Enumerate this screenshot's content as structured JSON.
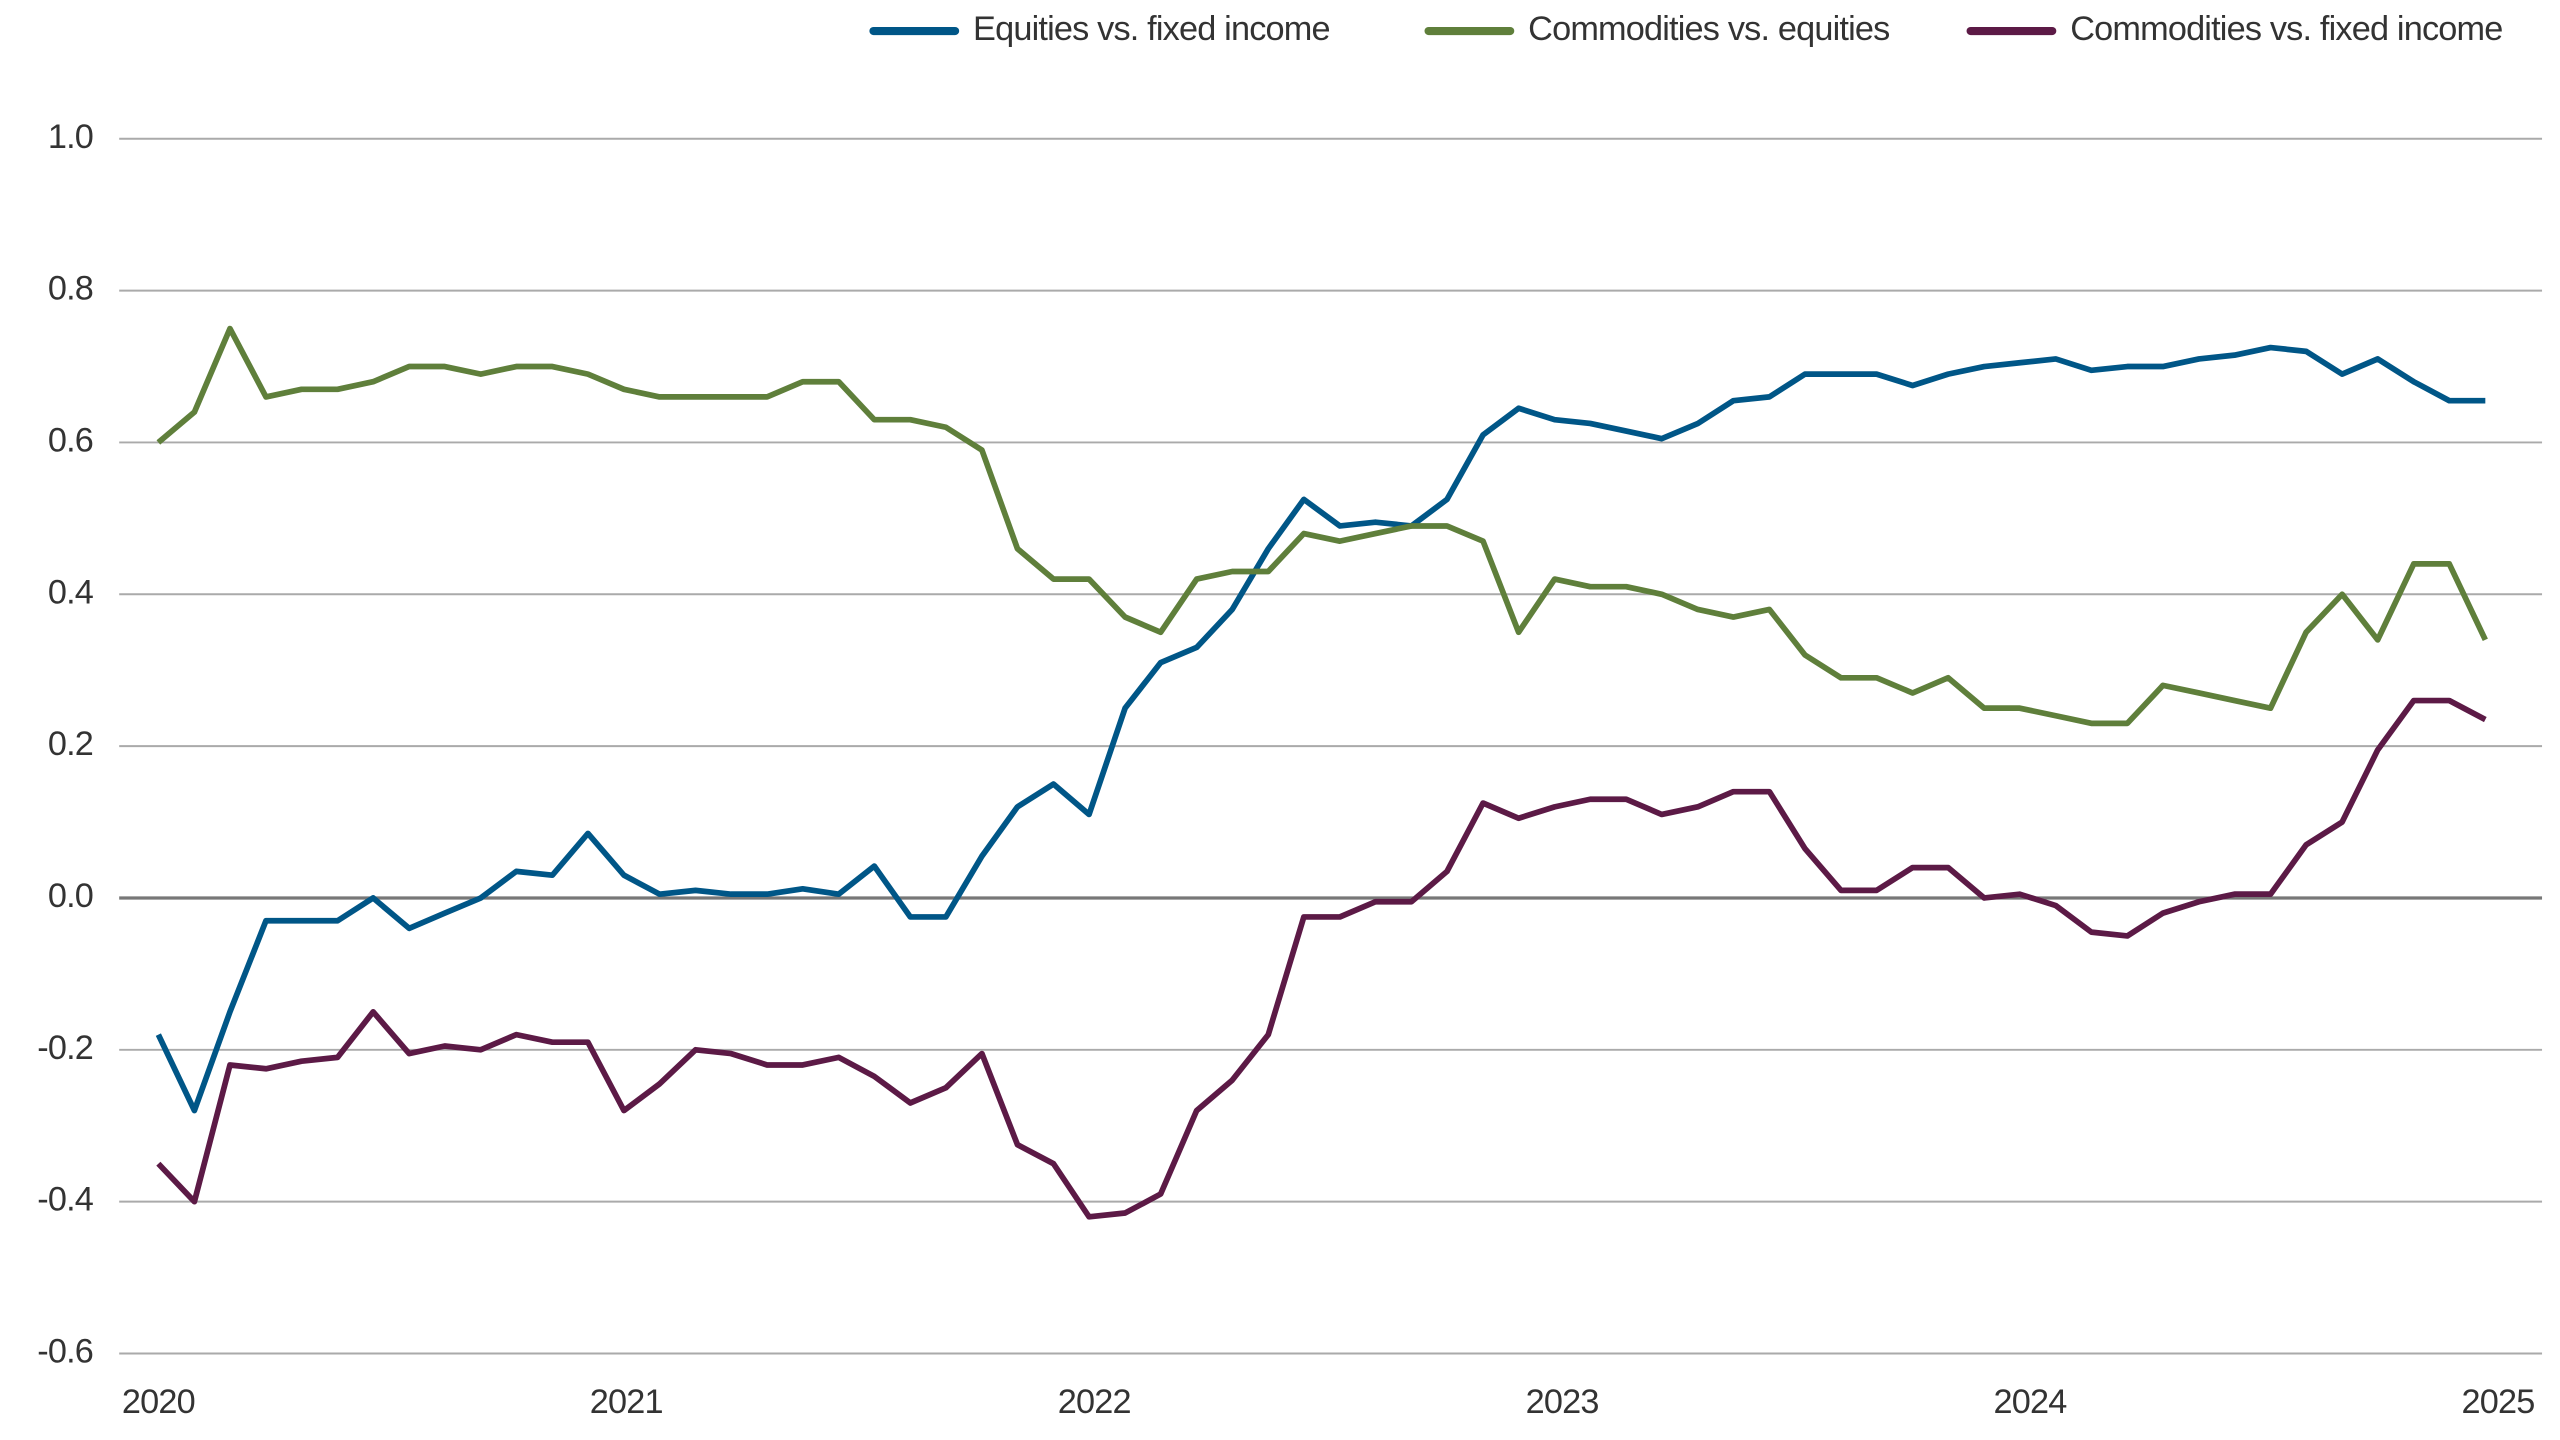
{
  "chart_data": {
    "type": "line",
    "x": [
      2020,
      2020.077,
      2020.153,
      2020.23,
      2020.306,
      2020.383,
      2020.459,
      2020.536,
      2020.612,
      2020.689,
      2020.765,
      2020.842,
      2020.918,
      2020.995,
      2021.071,
      2021.148,
      2021.224,
      2021.301,
      2021.377,
      2021.454,
      2021.53,
      2021.607,
      2021.683,
      2021.76,
      2021.836,
      2021.913,
      2021.989,
      2022.066,
      2022.142,
      2022.219,
      2022.295,
      2022.372,
      2022.448,
      2022.525,
      2022.601,
      2022.678,
      2022.754,
      2022.831,
      2022.907,
      2022.984,
      2023.06,
      2023.137,
      2023.213,
      2023.29,
      2023.366,
      2023.443,
      2023.519,
      2023.596,
      2023.672,
      2023.749,
      2023.825,
      2023.902,
      2023.978,
      2024.055,
      2024.131,
      2024.208,
      2024.284,
      2024.361,
      2024.437,
      2024.514,
      2024.59,
      2024.667,
      2024.743,
      2024.82,
      2024.896,
      2024.973
    ],
    "series": [
      {
        "name": "Equities vs. fixed income",
        "color": "#005687",
        "values": [
          -0.18,
          -0.28,
          -0.15,
          -0.03,
          -0.03,
          -0.03,
          0,
          -0.04,
          -0.02,
          0,
          0.035,
          0.03,
          0.085,
          0.03,
          0.005,
          0.01,
          0.005,
          0.005,
          0.012,
          0.005,
          0.042,
          -0.025,
          -0.025,
          0.055,
          0.12,
          0.15,
          0.11,
          0.25,
          0.31,
          0.33,
          0.38,
          0.46,
          0.525,
          0.49,
          0.495,
          0.49,
          0.525,
          0.61,
          0.645,
          0.63,
          0.625,
          0.615,
          0.605,
          0.625,
          0.655,
          0.66,
          0.69,
          0.69,
          0.69,
          0.675,
          0.69,
          0.7,
          0.705,
          0.71,
          0.695,
          0.7,
          0.7,
          0.71,
          0.715,
          0.725,
          0.72,
          0.69,
          0.71,
          0.68,
          0.655,
          0.655
        ]
      },
      {
        "name": "Commodities vs. equities",
        "color": "#5f7f3b",
        "values": [
          0.6,
          0.64,
          0.75,
          0.66,
          0.67,
          0.67,
          0.68,
          0.7,
          0.7,
          0.69,
          0.7,
          0.7,
          0.69,
          0.67,
          0.66,
          0.66,
          0.66,
          0.66,
          0.68,
          0.68,
          0.63,
          0.63,
          0.62,
          0.59,
          0.46,
          0.42,
          0.42,
          0.37,
          0.35,
          0.42,
          0.43,
          0.43,
          0.48,
          0.47,
          0.48,
          0.49,
          0.49,
          0.47,
          0.35,
          0.42,
          0.41,
          0.41,
          0.4,
          0.38,
          0.37,
          0.38,
          0.32,
          0.29,
          0.29,
          0.27,
          0.29,
          0.25,
          0.25,
          0.24,
          0.23,
          0.23,
          0.28,
          0.27,
          0.26,
          0.25,
          0.35,
          0.4,
          0.34,
          0.44,
          0.44,
          0.34
        ]
      },
      {
        "name": "Commodities vs. fixed income",
        "color": "#5c1a46",
        "values": [
          -0.35,
          -0.4,
          -0.22,
          -0.225,
          -0.215,
          -0.21,
          -0.15,
          -0.205,
          -0.195,
          -0.2,
          -0.18,
          -0.19,
          -0.19,
          -0.28,
          -0.245,
          -0.2,
          -0.205,
          -0.22,
          -0.22,
          -0.21,
          -0.235,
          -0.27,
          -0.25,
          -0.205,
          -0.325,
          -0.35,
          -0.42,
          -0.415,
          -0.39,
          -0.28,
          -0.24,
          -0.18,
          -0.025,
          -0.025,
          -0.005,
          -0.005,
          0.035,
          0.125,
          0.105,
          0.12,
          0.13,
          0.13,
          0.11,
          0.12,
          0.14,
          0.14,
          0.065,
          0.01,
          0.01,
          0.04,
          0.04,
          0,
          0.005,
          -0.01,
          -0.045,
          -0.05,
          -0.02,
          -0.005,
          0.005,
          0.005,
          0.07,
          0.1,
          0.195,
          0.26,
          0.26,
          0.235
        ]
      }
    ],
    "xlim": [
      2020,
      2025
    ],
    "xticks": [
      2020,
      2021,
      2022,
      2023,
      2024,
      2025
    ],
    "ylim": [
      -0.6,
      1.0
    ],
    "yticks": [
      {
        "value": -0.6,
        "label": "-0.6"
      },
      {
        "value": -0.4,
        "label": "-0.4"
      },
      {
        "value": -0.2,
        "label": "-0.2"
      },
      {
        "value": 0,
        "label": "0.0"
      },
      {
        "value": 0.2,
        "label": "0.2"
      },
      {
        "value": 0.4,
        "label": "0.4"
      },
      {
        "value": 0.6,
        "label": "0.6"
      },
      {
        "value": 0.8,
        "label": "0.8"
      },
      {
        "value": 1.0,
        "label": "1.0"
      }
    ],
    "grid": true,
    "legend": "top-right"
  }
}
